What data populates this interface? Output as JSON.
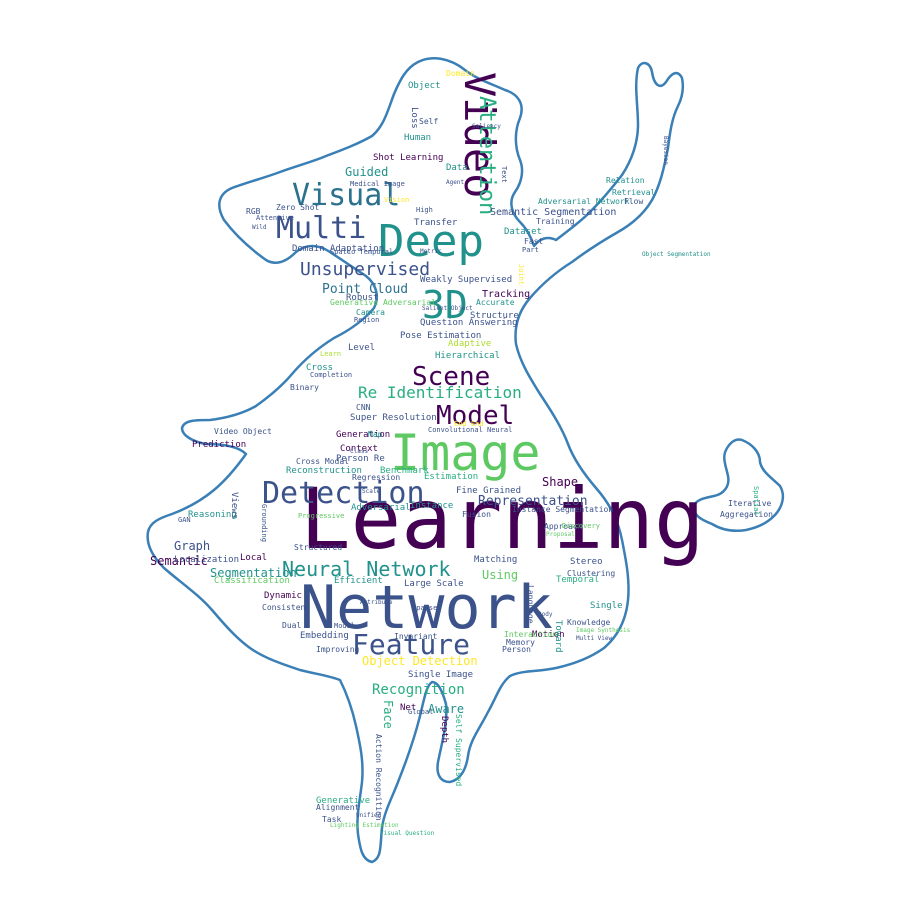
{
  "palette": {
    "dark_purple": "#440154",
    "navy": "#3b528b",
    "blue": "#2c728e",
    "teal": "#21918c",
    "green_teal": "#28ae80",
    "green": "#5ec962",
    "lime": "#addc30",
    "yellow": "#fde725",
    "outline": "#3a7fb5"
  },
  "words": [
    {
      "text": "Learning",
      "color": "dark_purple"
    },
    {
      "text": "Network",
      "color": "navy"
    },
    {
      "text": "Image",
      "color": "green"
    },
    {
      "text": "Deep",
      "color": "teal"
    },
    {
      "text": "Video",
      "color": "dark_purple"
    },
    {
      "text": "3D",
      "color": "teal"
    },
    {
      "text": "Detection",
      "color": "navy"
    },
    {
      "text": "Visual",
      "color": "blue"
    },
    {
      "text": "Multi",
      "color": "navy"
    },
    {
      "text": "Feature",
      "color": "navy"
    },
    {
      "text": "Scene",
      "color": "dark_purple"
    },
    {
      "text": "Model",
      "color": "dark_purple"
    },
    {
      "text": "Attention",
      "color": "green_teal"
    },
    {
      "text": "Neural Network",
      "color": "teal"
    },
    {
      "text": "Unsupervised",
      "color": "navy"
    },
    {
      "text": "Re Identification",
      "color": "green_teal"
    },
    {
      "text": "Point Cloud",
      "color": "blue"
    },
    {
      "text": "Recognition",
      "color": "green_teal"
    },
    {
      "text": "Representation",
      "color": "navy"
    },
    {
      "text": "Segmentation",
      "color": "teal"
    },
    {
      "text": "Semantic",
      "color": "dark_purple"
    },
    {
      "text": "Graph",
      "color": "navy"
    },
    {
      "text": "Object Detection",
      "color": "yellow"
    },
    {
      "text": "Aware",
      "color": "teal"
    },
    {
      "text": "Face",
      "color": "green_teal"
    },
    {
      "text": "Using",
      "color": "green"
    },
    {
      "text": "Shape",
      "color": "dark_purple"
    },
    {
      "text": "Guided",
      "color": "teal"
    },
    {
      "text": "Tracking",
      "color": "dark_purple"
    },
    {
      "text": "Semantic Segmentation",
      "color": "navy"
    },
    {
      "text": "Domain Adaptation",
      "color": "navy"
    },
    {
      "text": "Shot Learning",
      "color": "dark_purple"
    },
    {
      "text": "Pose Estimation",
      "color": "navy"
    },
    {
      "text": "Question Answering",
      "color": "navy"
    },
    {
      "text": "Structure",
      "color": "navy"
    },
    {
      "text": "Hierarchical",
      "color": "teal"
    },
    {
      "text": "Adaptive",
      "color": "lime"
    },
    {
      "text": "Super Resolution",
      "color": "navy"
    },
    {
      "text": "Convolutional Neural",
      "color": "navy"
    },
    {
      "text": "Generation",
      "color": "dark_purple"
    },
    {
      "text": "Context",
      "color": "dark_purple"
    },
    {
      "text": "Person Re",
      "color": "navy"
    },
    {
      "text": "Reconstruction",
      "color": "teal"
    },
    {
      "text": "Benchmark",
      "color": "green_teal"
    },
    {
      "text": "Estimation",
      "color": "green_teal"
    },
    {
      "text": "Fine Grained",
      "color": "navy"
    },
    {
      "text": "Instance Segmentation",
      "color": "navy"
    },
    {
      "text": "Stereo",
      "color": "navy"
    },
    {
      "text": "Clustering",
      "color": "navy"
    },
    {
      "text": "Temporal",
      "color": "green_teal"
    },
    {
      "text": "Single",
      "color": "teal"
    },
    {
      "text": "Localization",
      "color": "navy"
    },
    {
      "text": "Classification",
      "color": "green"
    },
    {
      "text": "Reasoning",
      "color": "teal"
    },
    {
      "text": "Efficient",
      "color": "teal"
    },
    {
      "text": "Large Scale",
      "color": "navy"
    },
    {
      "text": "Matching",
      "color": "navy"
    },
    {
      "text": "Dynamic",
      "color": "dark_purple"
    },
    {
      "text": "Consistent",
      "color": "navy"
    },
    {
      "text": "Embedding",
      "color": "navy"
    },
    {
      "text": "Improving",
      "color": "navy"
    },
    {
      "text": "Single Image",
      "color": "navy"
    },
    {
      "text": "Motion",
      "color": "dark_purple"
    },
    {
      "text": "Net",
      "color": "dark_purple"
    },
    {
      "text": "Depth",
      "color": "dark_purple"
    },
    {
      "text": "Self Supervised",
      "color": "green_teal"
    },
    {
      "text": "Action Recognition",
      "color": "navy"
    },
    {
      "text": "Generative",
      "color": "green_teal"
    },
    {
      "text": "Alignment",
      "color": "navy"
    },
    {
      "text": "Task",
      "color": "navy"
    },
    {
      "text": "Weakly Supervised",
      "color": "navy"
    },
    {
      "text": "Camera",
      "color": "teal"
    },
    {
      "text": "Robust",
      "color": "navy"
    },
    {
      "text": "Region",
      "color": "navy"
    },
    {
      "text": "Generative Adversarial",
      "color": "green"
    },
    {
      "text": "Accurate",
      "color": "teal"
    },
    {
      "text": "Level",
      "color": "navy"
    },
    {
      "text": "Cross",
      "color": "teal"
    },
    {
      "text": "Binary",
      "color": "navy"
    },
    {
      "text": "Prediction",
      "color": "dark_purple"
    },
    {
      "text": "Transfer",
      "color": "navy"
    },
    {
      "text": "Training",
      "color": "navy"
    },
    {
      "text": "Fast",
      "color": "navy"
    },
    {
      "text": "Dataset",
      "color": "teal"
    },
    {
      "text": "Human",
      "color": "teal"
    },
    {
      "text": "Data",
      "color": "teal"
    },
    {
      "text": "Self",
      "color": "navy"
    },
    {
      "text": "Loss",
      "color": "navy"
    },
    {
      "text": "Object",
      "color": "teal"
    },
    {
      "text": "Domain",
      "color": "yellow"
    },
    {
      "text": "Zero Shot",
      "color": "navy"
    },
    {
      "text": "RGB",
      "color": "navy"
    },
    {
      "text": "Spatio Temporal",
      "color": "navy"
    },
    {
      "text": "Adversarial Network",
      "color": "teal"
    },
    {
      "text": "Flow",
      "color": "navy"
    },
    {
      "text": "Relation",
      "color": "teal"
    },
    {
      "text": "Retrieval",
      "color": "teal"
    },
    {
      "text": "Adversarial",
      "color": "teal"
    },
    {
      "text": "Views",
      "color": "navy"
    },
    {
      "text": "Local",
      "color": "dark_purple"
    },
    {
      "text": "Structured",
      "color": "navy"
    },
    {
      "text": "Cross Modal",
      "color": "navy"
    },
    {
      "text": "Regression",
      "color": "navy"
    },
    {
      "text": "Fusion",
      "color": "navy"
    },
    {
      "text": "Instance",
      "color": "teal"
    },
    {
      "text": "Approach",
      "color": "navy"
    },
    {
      "text": "Knowledge",
      "color": "navy"
    },
    {
      "text": "Toward",
      "color": "teal"
    },
    {
      "text": "Interaction",
      "color": "green"
    },
    {
      "text": "Memory",
      "color": "navy"
    },
    {
      "text": "Person",
      "color": "navy"
    },
    {
      "text": "Dual",
      "color": "navy"
    },
    {
      "text": "GAN",
      "color": "navy"
    },
    {
      "text": "Invariant",
      "color": "navy"
    },
    {
      "text": "CNN",
      "color": "navy"
    },
    {
      "text": "Map",
      "color": "teal"
    },
    {
      "text": "Attentive",
      "color": "navy"
    },
    {
      "text": "Wild",
      "color": "navy"
    },
    {
      "text": "Iterative",
      "color": "navy"
    },
    {
      "text": "Aggregation",
      "color": "navy"
    },
    {
      "text": "Spatial",
      "color": "green_teal"
    },
    {
      "text": "Part",
      "color": "navy"
    },
    {
      "text": "Text",
      "color": "navy"
    },
    {
      "text": "High",
      "color": "navy"
    },
    {
      "text": "Learn",
      "color": "lime"
    },
    {
      "text": "Completion",
      "color": "navy"
    },
    {
      "text": "Progressive",
      "color": "green"
    },
    {
      "text": "Discovery",
      "color": "green"
    },
    {
      "text": "Proposal",
      "color": "green"
    },
    {
      "text": "Joint",
      "color": "yellow"
    },
    {
      "text": "Video Object",
      "color": "navy"
    },
    {
      "text": "Modal",
      "color": "navy"
    },
    {
      "text": "Vision",
      "color": "yellow"
    },
    {
      "text": "End End",
      "color": "yellow"
    },
    {
      "text": "Sparse",
      "color": "navy"
    },
    {
      "text": "Global",
      "color": "navy"
    },
    {
      "text": "Attribute",
      "color": "navy"
    },
    {
      "text": "Scale",
      "color": "navy"
    },
    {
      "text": "Metric",
      "color": "navy"
    },
    {
      "text": "Saliency",
      "color": "navy"
    },
    {
      "text": "Grounding",
      "color": "navy"
    },
    {
      "text": "Salient Object",
      "color": "navy"
    },
    {
      "text": "Language",
      "color": "navy"
    },
    {
      "text": "Image Synthesis",
      "color": "green"
    },
    {
      "text": "Multi View",
      "color": "navy"
    },
    {
      "text": "Body",
      "color": "navy"
    },
    {
      "text": "Agent",
      "color": "navy"
    },
    {
      "text": "Class",
      "color": "navy"
    },
    {
      "text": "Medical Image",
      "color": "navy"
    },
    {
      "text": "Bayesian",
      "color": "navy"
    },
    {
      "text": "Object Segmentation",
      "color": "teal"
    },
    {
      "text": "Lighting Estimation",
      "color": "green"
    },
    {
      "text": "Visual Question",
      "color": "green_teal"
    },
    {
      "text": "Unified",
      "color": "navy"
    },
    {
      "text": "Interpolation",
      "color": "navy"
    },
    {
      "text": "Geometry",
      "color": "navy"
    },
    {
      "text": "Manifold",
      "color": "navy"
    }
  ]
}
